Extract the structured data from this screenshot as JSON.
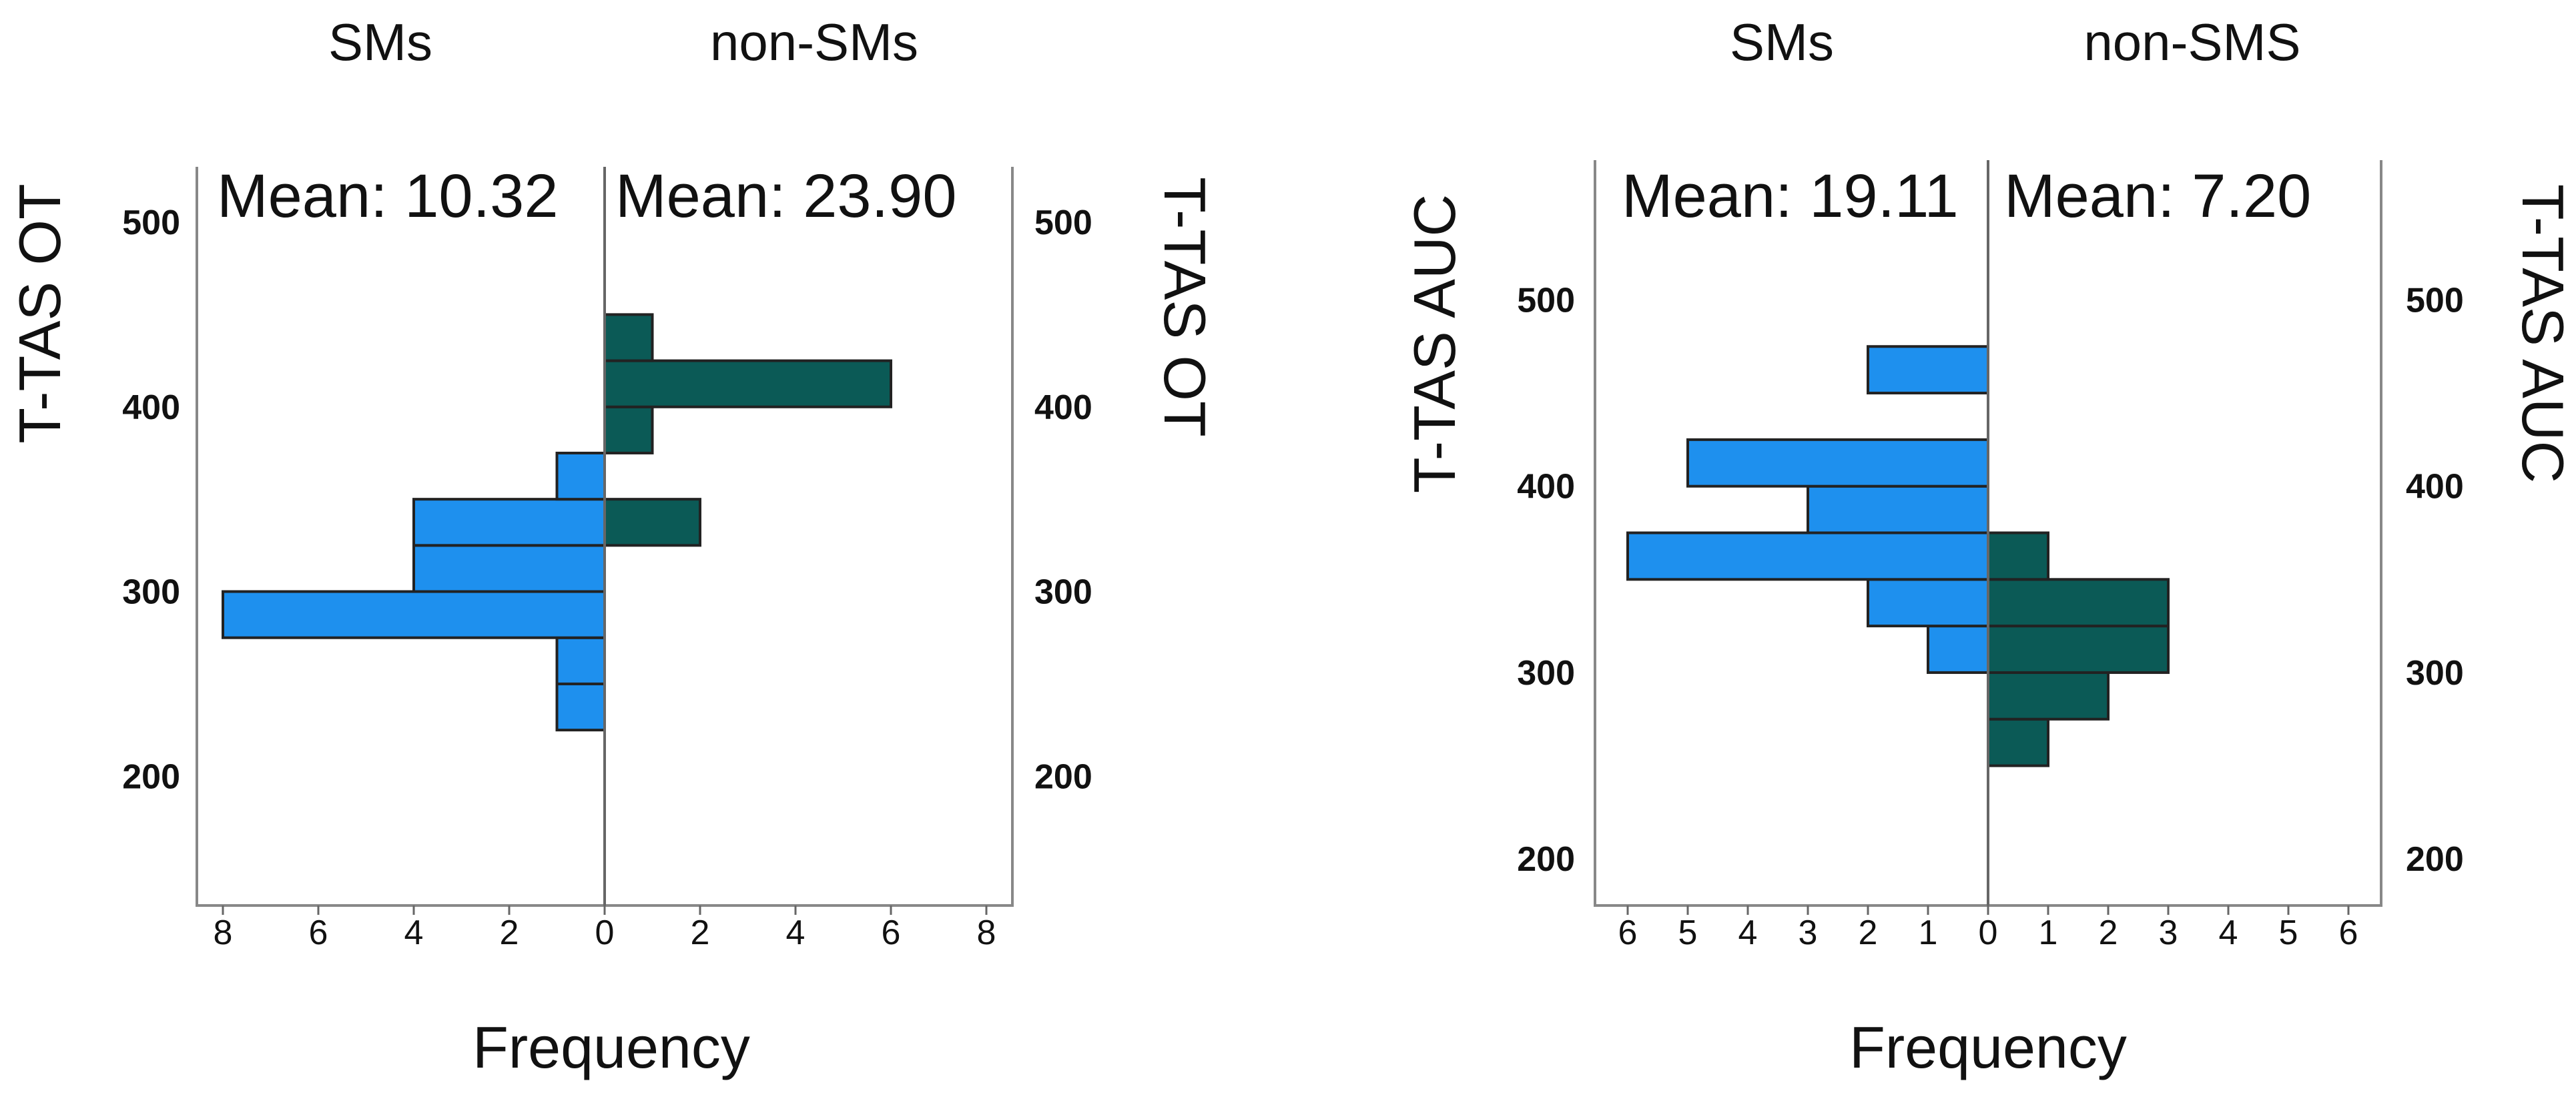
{
  "chart_data": [
    {
      "type": "bar",
      "subtype": "back-to-back histogram",
      "groups": [
        "SMs",
        "non-SMs"
      ],
      "means": [
        "Mean: 10.32",
        "Mean: 23.90"
      ],
      "ylabel_left": "T-TAS OT",
      "ylabel_right": "T-TAS OT",
      "xlabel": "Frequency",
      "ylim": [
        130,
        530
      ],
      "yticks": [
        "200",
        "300",
        "400",
        "500"
      ],
      "xticks_left": [
        "8",
        "6",
        "4",
        "2",
        "0"
      ],
      "xticks_right": [
        "2",
        "4",
        "6",
        "8"
      ],
      "xmax": 8,
      "bin_width": 25,
      "colors": {
        "left": "#1E90EE",
        "right": "#0B5A56",
        "edge": "#222222"
      },
      "left_bins": [
        {
          "from": 225,
          "count": 1
        },
        {
          "from": 250,
          "count": 1
        },
        {
          "from": 275,
          "count": 8
        },
        {
          "from": 300,
          "count": 4
        },
        {
          "from": 325,
          "count": 4
        },
        {
          "from": 350,
          "count": 1
        }
      ],
      "right_bins": [
        {
          "from": 325,
          "count": 2
        },
        {
          "from": 375,
          "count": 1
        },
        {
          "from": 400,
          "count": 6
        },
        {
          "from": 425,
          "count": 1
        }
      ]
    },
    {
      "type": "bar",
      "subtype": "back-to-back histogram",
      "groups": [
        "SMs",
        "non-SMS"
      ],
      "means": [
        "Mean: 19.11",
        "Mean: 7.20"
      ],
      "ylabel_left": "T-TAS AUC",
      "ylabel_right": "T-TAS AUC",
      "xlabel": "Frequency",
      "ylim": [
        175,
        575
      ],
      "yticks": [
        "200",
        "300",
        "400",
        "500"
      ],
      "xticks_left": [
        "6",
        "5",
        "4",
        "3",
        "2",
        "1",
        "0"
      ],
      "xticks_right": [
        "1",
        "2",
        "3",
        "4",
        "5",
        "6"
      ],
      "xmax": 6.3,
      "bin_width": 25,
      "colors": {
        "left": "#1E90EE",
        "right": "#0B5A56",
        "edge": "#222222"
      },
      "left_bins": [
        {
          "from": 300,
          "count": 1
        },
        {
          "from": 325,
          "count": 2
        },
        {
          "from": 350,
          "count": 6
        },
        {
          "from": 375,
          "count": 3
        },
        {
          "from": 400,
          "count": 5
        },
        {
          "from": 450,
          "count": 2
        }
      ],
      "right_bins": [
        {
          "from": 250,
          "count": 1
        },
        {
          "from": 275,
          "count": 2
        },
        {
          "from": 300,
          "count": 3
        },
        {
          "from": 325,
          "count": 3
        },
        {
          "from": 350,
          "count": 1
        }
      ]
    }
  ]
}
